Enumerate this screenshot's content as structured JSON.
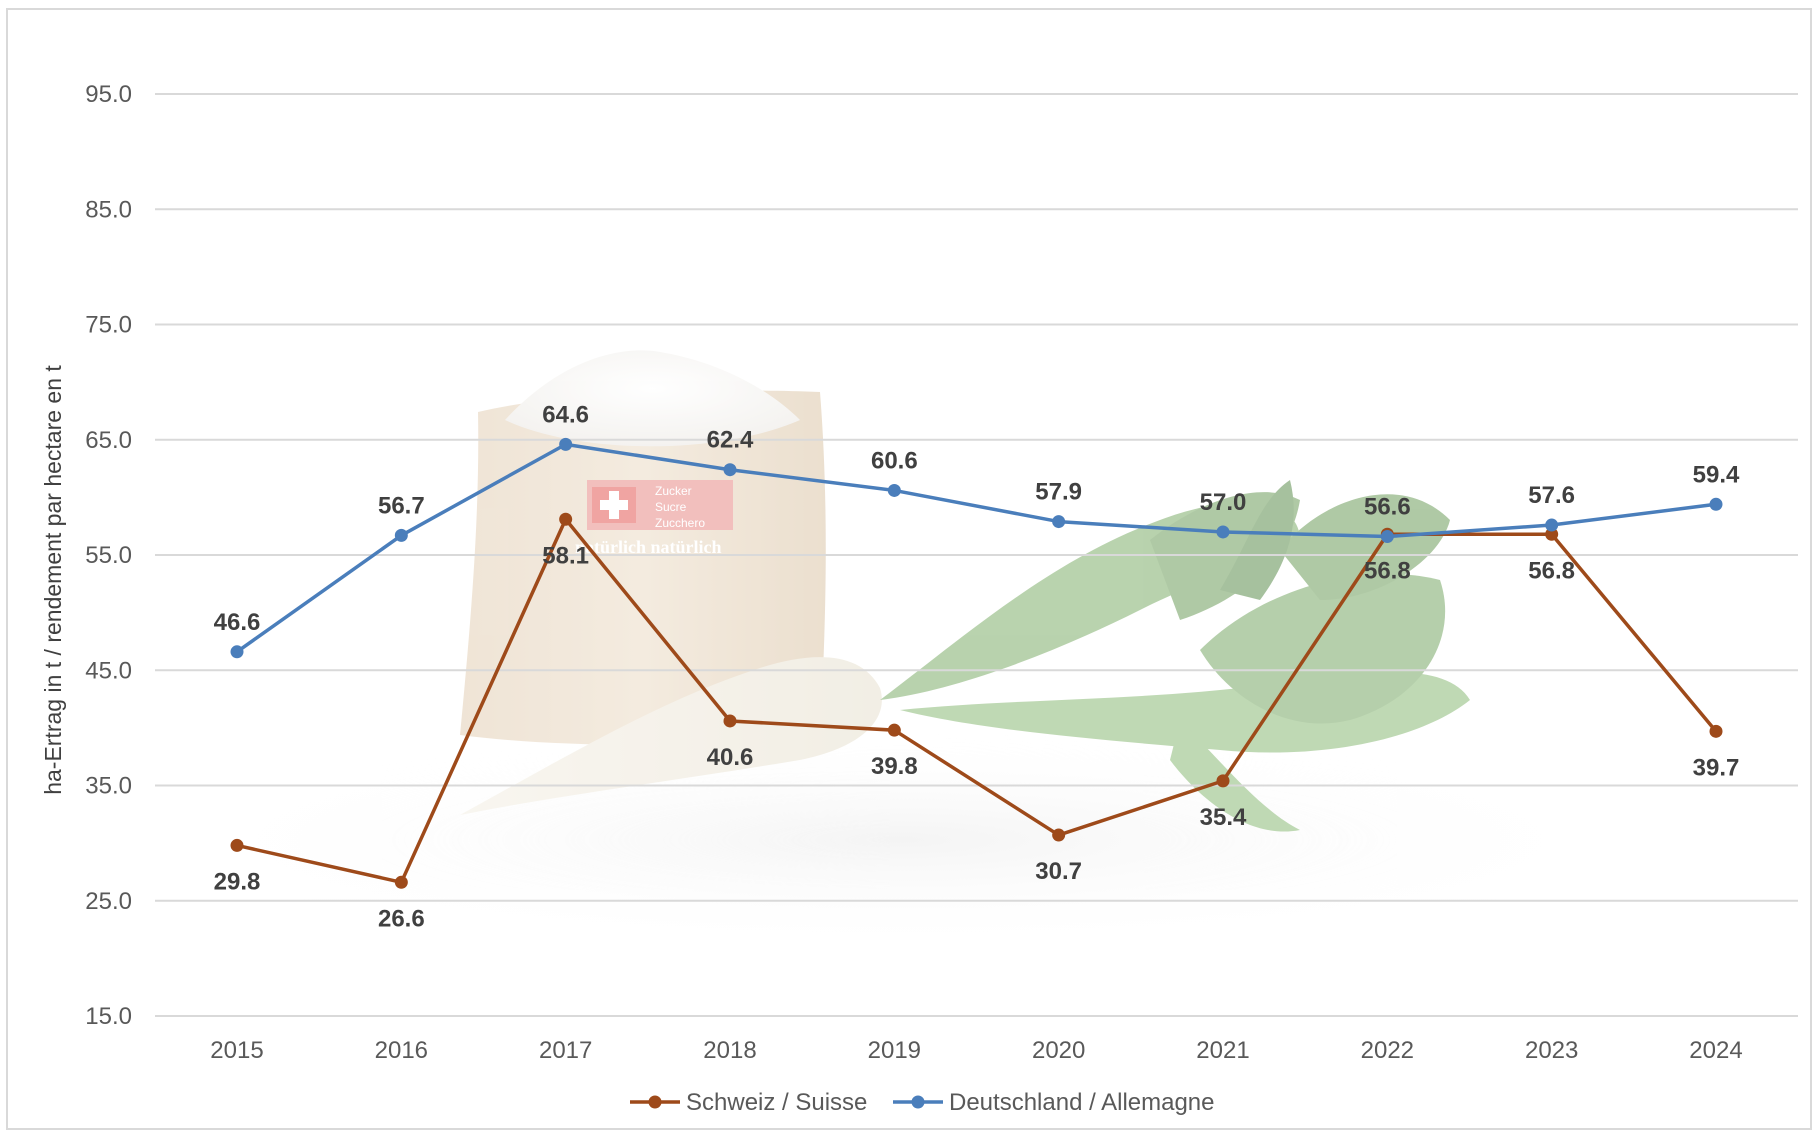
{
  "chart_data": {
    "type": "line",
    "title": "",
    "xlabel": "",
    "ylabel": "ha-Ertrag in t / rendement par hectare en t",
    "categories": [
      "2015",
      "2016",
      "2017",
      "2018",
      "2019",
      "2020",
      "2021",
      "2022",
      "2023",
      "2024"
    ],
    "y_ticks": [
      "15.0",
      "25.0",
      "35.0",
      "45.0",
      "55.0",
      "65.0",
      "75.0",
      "85.0",
      "95.0"
    ],
    "ylim": [
      15,
      95
    ],
    "grid": true,
    "legend_position": "bottom",
    "series": [
      {
        "name": "Schweiz / Suisse",
        "color": "#9e4a1a",
        "values": [
          29.8,
          26.6,
          58.1,
          40.6,
          39.8,
          30.7,
          35.4,
          56.8,
          56.8,
          39.7
        ],
        "labels": [
          "29.8",
          "26.6",
          "58.1",
          "40.6",
          "39.8",
          "30.7",
          "35.4",
          "56.8",
          "56.8",
          "39.7"
        ]
      },
      {
        "name": "Deutschland / Allemagne",
        "color": "#4a7ebb",
        "values": [
          46.6,
          56.7,
          64.6,
          62.4,
          60.6,
          57.9,
          57.0,
          56.6,
          57.6,
          59.4
        ],
        "labels": [
          "46.6",
          "56.7",
          "64.6",
          "62.4",
          "60.6",
          "57.9",
          "57.0",
          "56.6",
          "57.6",
          "59.4"
        ]
      }
    ],
    "background_image": {
      "description_icon": "sugar-sack-and-sugar-beet-photo",
      "sack_text": [
        "Zucker",
        "Sucre",
        "Zucchero"
      ],
      "sack_slogan": "natürlich natürlich"
    }
  }
}
